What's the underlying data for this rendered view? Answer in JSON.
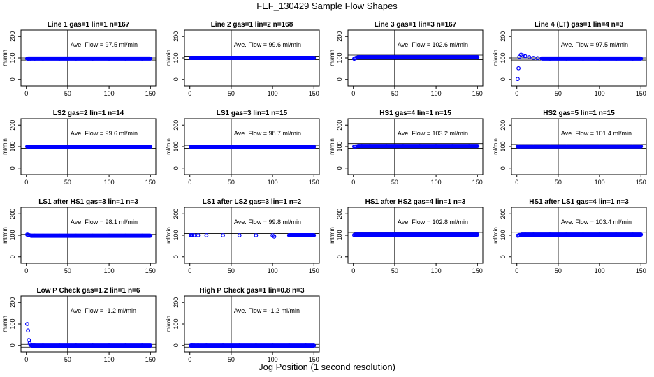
{
  "title": "FEF_130429  Sample Flow Shapes",
  "xlabel": "Jog Position (1 second resolution)",
  "ylabel": "ml/min",
  "marker_color": "#0000ff",
  "chart_data": [
    {
      "type": "scatter",
      "title": "Line 1 gas=1 lin=1 n=167",
      "annotation": "Ave. Flow = 97.5  ml/min",
      "xlim": [
        0,
        150
      ],
      "ylim": [
        -30,
        230
      ],
      "xticks": [
        0,
        50,
        100,
        150
      ],
      "yticks": [
        0,
        100,
        200
      ],
      "vline": 50,
      "hlines": [
        100,
        90
      ],
      "x": [
        1,
        2,
        3,
        5,
        10,
        20,
        40,
        60,
        80,
        100,
        120,
        140,
        150
      ],
      "y": [
        97,
        97,
        97,
        97,
        97,
        97,
        97,
        97,
        97,
        97,
        97,
        97,
        97
      ]
    },
    {
      "type": "scatter",
      "title": "Line 2 gas=1 lin=2 n=168",
      "annotation": "Ave. Flow = 99.6  ml/min",
      "xlim": [
        0,
        150
      ],
      "ylim": [
        -30,
        230
      ],
      "xticks": [
        0,
        50,
        100,
        150
      ],
      "yticks": [
        0,
        100,
        200
      ],
      "vline": 50,
      "hlines": [
        108,
        92
      ],
      "x": [
        1,
        2,
        3,
        5,
        10,
        20,
        40,
        60,
        80,
        100,
        120,
        140,
        150
      ],
      "y": [
        100,
        100,
        100,
        100,
        100,
        100,
        100,
        100,
        100,
        100,
        100,
        100,
        100
      ]
    },
    {
      "type": "scatter",
      "title": "Line 3 gas=1 lin=3 n=167",
      "annotation": "Ave. Flow = 102.6  ml/min",
      "xlim": [
        0,
        150
      ],
      "ylim": [
        -30,
        230
      ],
      "xticks": [
        0,
        50,
        100,
        150
      ],
      "yticks": [
        0,
        100,
        200
      ],
      "vline": 50,
      "hlines": [
        113,
        92
      ],
      "x": [
        1,
        2,
        3,
        5,
        10,
        20,
        40,
        60,
        80,
        100,
        120,
        140,
        150
      ],
      "y": [
        96,
        98,
        100,
        102,
        103,
        103,
        103,
        103,
        103,
        103,
        103,
        103,
        103
      ]
    },
    {
      "type": "scatter",
      "title": "Line 4 (LT) gas=1 lin=4 n=3",
      "annotation": "Ave. Flow = 97.5  ml/min",
      "xlim": [
        0,
        150
      ],
      "ylim": [
        -30,
        230
      ],
      "xticks": [
        0,
        50,
        100,
        150
      ],
      "yticks": [
        0,
        100,
        200
      ],
      "vline": 50,
      "hlines": [
        100,
        90
      ],
      "x": [
        1,
        2,
        3,
        5,
        7,
        10,
        15,
        20,
        25,
        30,
        40,
        60,
        80,
        100,
        120,
        140,
        150
      ],
      "y": [
        2,
        52,
        105,
        115,
        112,
        108,
        103,
        100,
        99,
        98,
        97,
        97,
        97,
        97,
        97,
        97,
        97
      ]
    },
    {
      "type": "scatter",
      "title": "LS2 gas=2 lin=1 n=14",
      "annotation": "Ave. Flow = 99.6  ml/min",
      "xlim": [
        0,
        150
      ],
      "ylim": [
        -30,
        230
      ],
      "xticks": [
        0,
        50,
        100,
        150
      ],
      "yticks": [
        0,
        100,
        200
      ],
      "vline": 50,
      "hlines": [
        108,
        92
      ],
      "x": [
        1,
        2,
        3,
        5,
        10,
        20,
        40,
        60,
        80,
        100,
        120,
        140,
        150
      ],
      "y": [
        100,
        100,
        100,
        100,
        100,
        100,
        100,
        100,
        100,
        100,
        100,
        100,
        100
      ]
    },
    {
      "type": "scatter",
      "title": "LS1 gas=3 lin=1 n=15",
      "annotation": "Ave. Flow = 98.7  ml/min",
      "xlim": [
        0,
        150
      ],
      "ylim": [
        -30,
        230
      ],
      "xticks": [
        0,
        50,
        100,
        150
      ],
      "yticks": [
        0,
        100,
        200
      ],
      "vline": 50,
      "hlines": [
        106,
        92
      ],
      "x": [
        1,
        2,
        3,
        5,
        10,
        20,
        40,
        60,
        80,
        100,
        120,
        140,
        150
      ],
      "y": [
        99,
        99,
        99,
        99,
        99,
        99,
        99,
        99,
        99,
        99,
        99,
        99,
        99
      ]
    },
    {
      "type": "scatter",
      "title": "HS1 gas=4 lin=1 n=15",
      "annotation": "Ave. Flow = 103.2  ml/min",
      "xlim": [
        0,
        150
      ],
      "ylim": [
        -30,
        230
      ],
      "xticks": [
        0,
        50,
        100,
        150
      ],
      "yticks": [
        0,
        100,
        200
      ],
      "vline": 50,
      "hlines": [
        114,
        92
      ],
      "x": [
        1,
        2,
        3,
        5,
        10,
        20,
        40,
        60,
        80,
        100,
        120,
        140,
        150
      ],
      "y": [
        100,
        100,
        101,
        102,
        103,
        103,
        103,
        103,
        103,
        103,
        103,
        103,
        103
      ]
    },
    {
      "type": "scatter",
      "title": "HS2 gas=5 lin=1 n=15",
      "annotation": "Ave. Flow = 101.4  ml/min",
      "xlim": [
        0,
        150
      ],
      "ylim": [
        -30,
        230
      ],
      "xticks": [
        0,
        50,
        100,
        150
      ],
      "yticks": [
        0,
        100,
        200
      ],
      "vline": 50,
      "hlines": [
        110,
        92
      ],
      "x": [
        1,
        2,
        3,
        5,
        10,
        20,
        40,
        60,
        80,
        100,
        120,
        140,
        150
      ],
      "y": [
        101,
        101,
        101,
        101,
        101,
        101,
        101,
        101,
        101,
        101,
        101,
        101,
        101
      ]
    },
    {
      "type": "scatter",
      "title": "LS1 after HS1 gas=3 lin=1 n=3",
      "annotation": "Ave. Flow = 98.1  ml/min",
      "xlim": [
        0,
        150
      ],
      "ylim": [
        -30,
        230
      ],
      "xticks": [
        0,
        50,
        100,
        150
      ],
      "yticks": [
        0,
        100,
        200
      ],
      "vline": 50,
      "hlines": [
        104,
        92
      ],
      "x": [
        1,
        2,
        3,
        5,
        10,
        20,
        40,
        60,
        80,
        100,
        120,
        140,
        150
      ],
      "y": [
        103,
        102,
        101,
        99,
        98,
        98,
        98,
        98,
        98,
        98,
        98,
        98,
        98
      ]
    },
    {
      "type": "scatter",
      "title": "LS1 after LS2 gas=3 lin=1 n=2",
      "annotation": "Ave. Flow = 99.8  ml/min",
      "xlim": [
        0,
        150
      ],
      "ylim": [
        -30,
        230
      ],
      "xticks": [
        0,
        50,
        100,
        150
      ],
      "yticks": [
        0,
        100,
        200
      ],
      "vline": 50,
      "hlines": [
        108,
        92
      ],
      "x": [
        1,
        2,
        3,
        5,
        10,
        20,
        40,
        60,
        80,
        100,
        102,
        120,
        140,
        150
      ],
      "y": [
        100,
        100,
        100,
        100,
        100,
        100,
        100,
        100,
        100,
        100,
        94,
        100,
        100,
        100
      ]
    },
    {
      "type": "scatter",
      "title": "HS1 after HS2 gas=4 lin=1 n=3",
      "annotation": "Ave. Flow = 102.8  ml/min",
      "xlim": [
        0,
        150
      ],
      "ylim": [
        -30,
        230
      ],
      "xticks": [
        0,
        50,
        100,
        150
      ],
      "yticks": [
        0,
        100,
        200
      ],
      "vline": 50,
      "hlines": [
        113,
        92
      ],
      "x": [
        1,
        2,
        3,
        5,
        10,
        20,
        40,
        60,
        80,
        100,
        120,
        140,
        150
      ],
      "y": [
        101,
        102,
        103,
        103,
        103,
        103,
        103,
        103,
        103,
        103,
        103,
        103,
        103
      ]
    },
    {
      "type": "scatter",
      "title": "HS1 after LS1 gas=4 lin=1 n=3",
      "annotation": "Ave. Flow = 103.4  ml/min",
      "xlim": [
        0,
        150
      ],
      "ylim": [
        -30,
        230
      ],
      "xticks": [
        0,
        50,
        100,
        150
      ],
      "yticks": [
        0,
        100,
        200
      ],
      "vline": 50,
      "hlines": [
        114,
        92
      ],
      "x": [
        1,
        2,
        3,
        5,
        10,
        20,
        40,
        60,
        80,
        100,
        120,
        140,
        150
      ],
      "y": [
        98,
        99,
        101,
        102,
        103,
        103,
        103,
        103,
        103,
        103,
        103,
        103,
        103
      ]
    },
    {
      "type": "scatter",
      "title": "Low P Check gas=1.2 lin=1 n=6",
      "annotation": "Ave. Flow = -1.2  ml/min",
      "xlim": [
        0,
        150
      ],
      "ylim": [
        -30,
        230
      ],
      "xticks": [
        0,
        50,
        100,
        150
      ],
      "yticks": [
        0,
        100,
        200
      ],
      "vline": 50,
      "hlines": [
        5,
        -8
      ],
      "x": [
        1,
        2,
        3,
        4,
        5,
        6,
        8,
        10,
        20,
        40,
        60,
        80,
        100,
        120,
        140,
        150
      ],
      "y": [
        100,
        70,
        25,
        10,
        3,
        0,
        -1,
        -1,
        -1,
        -1,
        -1,
        -1,
        -1,
        -1,
        -1,
        -1
      ]
    },
    {
      "type": "scatter",
      "title": "High P Check gas=1 lin=0.8 n=3",
      "annotation": "Ave. Flow = -1.2  ml/min",
      "xlim": [
        0,
        150
      ],
      "ylim": [
        -30,
        230
      ],
      "xticks": [
        0,
        50,
        100,
        150
      ],
      "yticks": [
        0,
        100,
        200
      ],
      "vline": 50,
      "hlines": [
        5,
        -8
      ],
      "x": [
        1,
        2,
        3,
        5,
        10,
        20,
        40,
        60,
        80,
        100,
        120,
        140,
        150
      ],
      "y": [
        -1,
        -1,
        -1,
        -1,
        -1,
        -1,
        -1,
        -1,
        -1,
        -1,
        -1,
        -1,
        -1
      ]
    }
  ]
}
